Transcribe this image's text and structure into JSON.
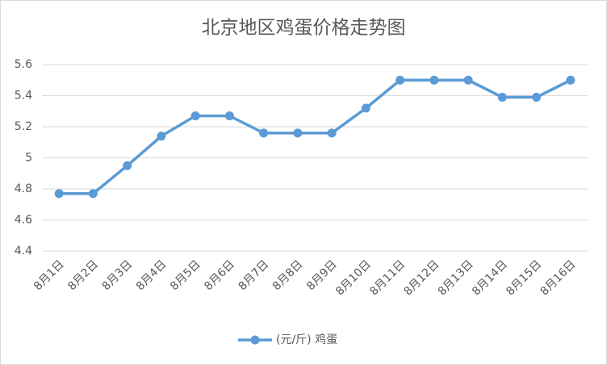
{
  "chart_data": {
    "type": "line",
    "title": "北京地区鸡蛋价格走势图",
    "categories": [
      "8月1日",
      "8月2日",
      "8月3日",
      "8月4日",
      "8月5日",
      "8月6日",
      "8月7日",
      "8月8日",
      "8月9日",
      "8月10日",
      "8月11日",
      "8月12日",
      "8月13日",
      "8月14日",
      "8月15日",
      "8月16日"
    ],
    "series": [
      {
        "name": "(元/斤) 鸡蛋",
        "color": "#5b9bd5",
        "values": [
          4.77,
          4.77,
          4.95,
          5.14,
          5.27,
          5.27,
          5.16,
          5.16,
          5.16,
          5.32,
          5.5,
          5.5,
          5.5,
          5.39,
          5.39,
          5.5
        ]
      }
    ],
    "ylim": [
      4.4,
      5.6
    ],
    "yticks": [
      4.4,
      4.6,
      4.8,
      5,
      5.2,
      5.4,
      5.6
    ],
    "grid": true,
    "legend": "bottom"
  }
}
